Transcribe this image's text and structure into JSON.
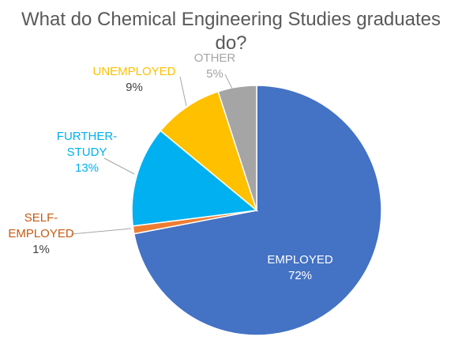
{
  "chart_data": {
    "type": "pie",
    "title": "What do Chemical Engineering Studies graduates do?",
    "slices": [
      {
        "label_lines": [
          "EMPLOYED"
        ],
        "value_text": "72%",
        "value": 72,
        "color": "#4472C4",
        "label_color": "#ffffff",
        "value_color": "#ffffff"
      },
      {
        "label_lines": [
          "SELF-",
          "EMPLOYED"
        ],
        "value_text": "1%",
        "value": 1,
        "color": "#ED7D31",
        "label_color": "#C55A11",
        "value_color": "#404040"
      },
      {
        "label_lines": [
          "FURTHER-",
          "STUDY"
        ],
        "value_text": "13%",
        "value": 13,
        "color": "#00B0F0",
        "label_color": "#00B0F0",
        "value_color": "#00B0F0"
      },
      {
        "label_lines": [
          "UNEMPLOYED"
        ],
        "value_text": "9%",
        "value": 9,
        "color": "#FFC000",
        "label_color": "#FFC000",
        "value_color": "#404040"
      },
      {
        "label_lines": [
          "OTHER"
        ],
        "value_text": "5%",
        "value": 5,
        "color": "#A5A5A5",
        "label_color": "#A5A5A5",
        "value_color": "#A5A5A5"
      }
    ]
  }
}
